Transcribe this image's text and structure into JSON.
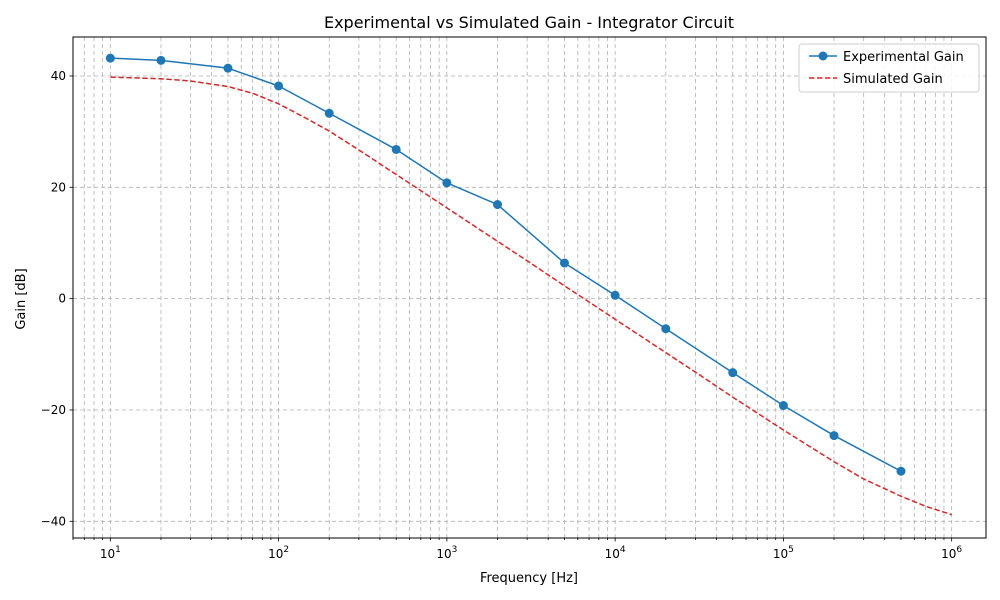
{
  "chart_data": {
    "type": "line",
    "title": "Experimental vs Simulated Gain - Integrator Circuit",
    "xlabel": "Frequency [Hz]",
    "ylabel": "Gain [dB]",
    "xscale": "log",
    "xlim": [
      6,
      1600000
    ],
    "ylim": [
      -43,
      47
    ],
    "grid": true,
    "legend_position": "top-right",
    "xticks": [
      {
        "value": 10,
        "base": "10",
        "exp": "1"
      },
      {
        "value": 100,
        "base": "10",
        "exp": "2"
      },
      {
        "value": 1000,
        "base": "10",
        "exp": "3"
      },
      {
        "value": 10000,
        "base": "10",
        "exp": "4"
      },
      {
        "value": 100000,
        "base": "10",
        "exp": "5"
      },
      {
        "value": 1000000,
        "base": "10",
        "exp": "6"
      }
    ],
    "yticks": [
      {
        "value": 40,
        "label": "40"
      },
      {
        "value": 20,
        "label": "20"
      },
      {
        "value": 0,
        "label": "0"
      },
      {
        "value": -20,
        "label": "−20"
      },
      {
        "value": -40,
        "label": "−40"
      }
    ],
    "series": [
      {
        "name": "Experimental Gain",
        "color": "#1f77b4",
        "style": "solid",
        "marker": "circle",
        "x": [
          10,
          20,
          50,
          100,
          200,
          500,
          1000,
          2000,
          5000,
          10000,
          20000,
          50000,
          100000,
          200000,
          500000
        ],
        "y": [
          43.2,
          42.8,
          41.4,
          38.2,
          33.3,
          26.8,
          20.8,
          16.9,
          6.4,
          0.6,
          -5.4,
          -13.3,
          -19.2,
          -24.6,
          -31.0
        ]
      },
      {
        "name": "Simulated Gain",
        "color": "#d62728",
        "style": "dashed",
        "marker": "none",
        "x": [
          10,
          20,
          30,
          50,
          70,
          100,
          150,
          200,
          300,
          500,
          700,
          1000,
          2000,
          3000,
          5000,
          7000,
          10000,
          20000,
          30000,
          50000,
          100000,
          200000,
          300000,
          500000,
          700000,
          1000000
        ],
        "y": [
          39.8,
          39.5,
          39.1,
          38.1,
          36.9,
          35.0,
          32.2,
          30.1,
          26.7,
          22.3,
          19.4,
          16.3,
          10.3,
          6.8,
          2.3,
          -0.6,
          -3.7,
          -9.7,
          -13.2,
          -17.7,
          -23.6,
          -29.3,
          -32.4,
          -35.5,
          -37.3,
          -38.8
        ]
      }
    ]
  }
}
